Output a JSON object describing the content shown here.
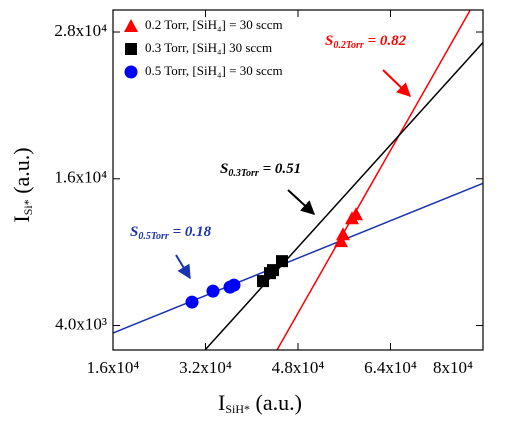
{
  "chart_data": {
    "type": "scatter",
    "x_label": {
      "main": "I",
      "sub": "SiH*",
      "unit": " (a.u.)"
    },
    "y_label": {
      "main": "I",
      "sub": "Si*",
      "unit": " (a.u.)"
    },
    "xlim": [
      16000,
      80000
    ],
    "ylim": [
      2000,
      29800
    ],
    "xticks": [
      {
        "value": 16000,
        "label": "1.6x10⁴"
      },
      {
        "value": 32000,
        "label": "3.2x10⁴"
      },
      {
        "value": 48000,
        "label": "4.8x10⁴"
      },
      {
        "value": 64000,
        "label": "6.4x10⁴"
      },
      {
        "value": 80000,
        "label": "8x10⁴"
      }
    ],
    "yticks": [
      {
        "value": 4000,
        "label": "4.0x10³"
      },
      {
        "value": 16000,
        "label": "1.6x10⁴"
      },
      {
        "value": 28000,
        "label": "2.8x10⁴"
      }
    ],
    "legend": "upper left",
    "series": [
      {
        "name": "0.2 Torr,  [SiH₄] = 30 sccm",
        "color": "#ff0000",
        "marker": "triangle",
        "x": [
          55438,
          55784,
          57340,
          58032
        ],
        "values": [
          10898,
          11469,
          12776,
          13102
        ]
      },
      {
        "name": "0.3 Torr,  [SiH₄]    30 sccm",
        "color": "#000000",
        "marker": "square",
        "x": [
          41946,
          43157,
          43676,
          45232
        ],
        "values": [
          7633,
          8286,
          8531,
          9265
        ]
      },
      {
        "name": "0.5 Torr,  [SiH₄] = 30 sccm",
        "color": "#0000ff",
        "marker": "circle",
        "x": [
          29665,
          33297,
          36238,
          36930
        ],
        "values": [
          5918,
          6816,
          7143,
          7306
        ]
      }
    ],
    "fits": [
      {
        "color": "#ff0000",
        "x": [
          44368,
          77751
        ],
        "values": [
          2000,
          29755
        ]
      },
      {
        "color": "#000000",
        "x": [
          31914,
          80000
        ],
        "values": [
          2000,
          27143
        ]
      },
      {
        "color": "#1a33b0",
        "x": [
          16000,
          80000
        ],
        "values": [
          3388,
          15633
        ]
      }
    ],
    "annotations": [
      {
        "text": "S",
        "sub": "0.2Torr",
        "value": " = 0.82",
        "color": "#ff0000"
      },
      {
        "text": "S",
        "sub": "0.3Torr",
        "value": " = 0.51",
        "color": "#000000"
      },
      {
        "text": "S",
        "sub": "0.5Torr",
        "value": " = 0.18",
        "color": "#1a33b0"
      }
    ]
  }
}
